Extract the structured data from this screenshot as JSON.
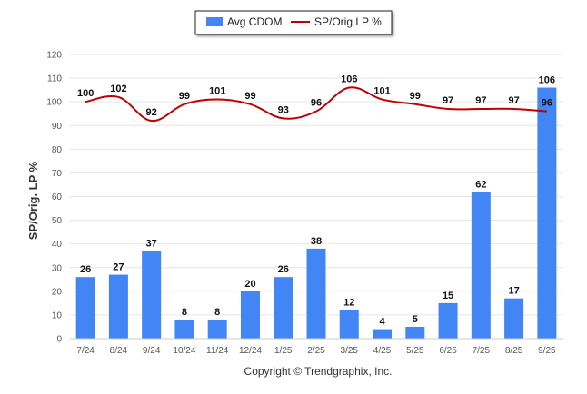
{
  "chart_data": {
    "type": "bar",
    "title": "",
    "xlabel": "",
    "ylabel": "SP/Orig. LP %",
    "ylim": [
      0,
      120
    ],
    "yticks": [
      0,
      10,
      20,
      30,
      40,
      50,
      60,
      70,
      80,
      90,
      100,
      110,
      120
    ],
    "categories": [
      "7/24",
      "8/24",
      "9/24",
      "10/24",
      "11/24",
      "12/24",
      "1/25",
      "2/25",
      "3/25",
      "4/25",
      "5/25",
      "6/25",
      "7/25",
      "8/25",
      "9/25"
    ],
    "series": [
      {
        "name": "Avg CDOM",
        "type": "bar",
        "color": "#4285f4",
        "values": [
          26,
          27,
          37,
          8,
          8,
          20,
          26,
          38,
          12,
          4,
          5,
          15,
          62,
          17,
          106
        ]
      },
      {
        "name": "SP/Orig LP %",
        "type": "line",
        "color": "#c00000",
        "values": [
          100,
          102,
          92,
          99,
          101,
          99,
          93,
          96,
          106,
          101,
          99,
          97,
          97,
          97,
          96
        ]
      }
    ],
    "legend_position": "top-center",
    "grid": true
  },
  "legend": {
    "items": [
      "Avg CDOM",
      "SP/Orig LP %"
    ]
  },
  "footer": {
    "copyright": "Copyright © Trendgraphix, Inc."
  }
}
